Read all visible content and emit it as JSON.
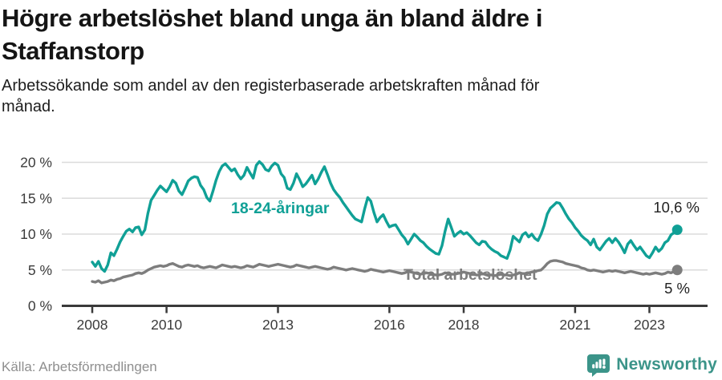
{
  "header": {
    "title_lines": [
      "Högre arbetslöshet bland unga än bland äldre i",
      "Staffanstorp"
    ],
    "subtitle_lines": [
      "Arbetssökande som andel av den registerbaserade arbetskraften månad för",
      "månad."
    ]
  },
  "chart_data": {
    "type": "line",
    "title": "Arbetssökande som andel av den registerbaserade arbetskraften månad för månad",
    "x_start": {
      "year": 2008,
      "month": 1
    },
    "x_end": {
      "year": 2023,
      "month": 10
    },
    "ylim": [
      0,
      20
    ],
    "grid": "horizontal",
    "legend_position": "inline-labels",
    "y_ticks": [
      {
        "label": "0 %",
        "value": 0
      },
      {
        "label": "5 %",
        "value": 5
      },
      {
        "label": "10 %",
        "value": 10
      },
      {
        "label": "15 %",
        "value": 15
      },
      {
        "label": "20 %",
        "value": 20
      }
    ],
    "x_ticks": [
      {
        "label": "2008",
        "year": 2008
      },
      {
        "label": "2010",
        "year": 2010
      },
      {
        "label": "2013",
        "year": 2013
      },
      {
        "label": "2016",
        "year": 2016
      },
      {
        "label": "2018",
        "year": 2018
      },
      {
        "label": "2021",
        "year": 2021
      },
      {
        "label": "2023",
        "year": 2023
      }
    ],
    "series": [
      {
        "name": "18-24-åringar",
        "color": "#10A096",
        "end_label": "10,6 %",
        "end_value": 10.6,
        "values": [
          6.1,
          5.5,
          6.2,
          5.2,
          4.8,
          5.7,
          7.4,
          7.0,
          7.9,
          8.9,
          9.7,
          10.4,
          10.7,
          10.3,
          10.9,
          11.0,
          9.9,
          10.6,
          12.9,
          14.7,
          15.4,
          16.1,
          16.7,
          16.3,
          15.9,
          16.6,
          17.5,
          17.1,
          16.0,
          15.5,
          16.4,
          17.4,
          17.8,
          18.0,
          17.9,
          16.8,
          16.2,
          15.1,
          14.6,
          16.0,
          17.5,
          18.7,
          19.5,
          19.8,
          19.3,
          18.8,
          19.1,
          18.3,
          17.7,
          18.2,
          19.3,
          18.5,
          17.8,
          19.6,
          20.1,
          19.7,
          19.0,
          18.8,
          19.5,
          19.9,
          19.6,
          18.4,
          17.9,
          16.4,
          16.2,
          17.1,
          18.4,
          17.6,
          16.6,
          17.0,
          17.6,
          18.2,
          17.0,
          17.7,
          18.6,
          19.4,
          18.3,
          17.1,
          16.2,
          15.6,
          15.1,
          14.4,
          13.8,
          13.2,
          12.6,
          12.1,
          11.9,
          11.7,
          13.5,
          15.1,
          14.6,
          13.0,
          11.7,
          12.3,
          12.7,
          11.8,
          11.0,
          11.2,
          11.3,
          10.6,
          9.9,
          9.4,
          8.6,
          9.3,
          10.0,
          9.6,
          9.1,
          8.8,
          8.3,
          7.9,
          7.6,
          7.3,
          7.2,
          8.4,
          10.4,
          12.1,
          10.9,
          9.7,
          10.1,
          10.4,
          10.0,
          10.2,
          9.8,
          9.3,
          8.8,
          8.5,
          9.0,
          8.9,
          8.3,
          7.9,
          7.6,
          7.4,
          7.0,
          6.8,
          6.6,
          7.8,
          9.7,
          9.3,
          8.9,
          9.9,
          10.2,
          9.6,
          10.0,
          9.4,
          9.1,
          10.0,
          11.2,
          12.8,
          13.6,
          14.0,
          14.4,
          14.3,
          13.6,
          12.8,
          12.1,
          11.6,
          10.9,
          10.4,
          9.8,
          9.4,
          9.1,
          8.5,
          9.3,
          8.2,
          7.8,
          8.4,
          9.0,
          9.4,
          8.8,
          9.4,
          8.9,
          8.2,
          7.4,
          8.6,
          9.1,
          8.4,
          7.8,
          8.2,
          7.6,
          7.0,
          6.7,
          7.4,
          8.2,
          7.6,
          8.0,
          8.8,
          9.1,
          9.9,
          10.2,
          10.6
        ]
      },
      {
        "name": "Total arbetslöshet",
        "color": "#7D7D7D",
        "end_label": "5 %",
        "end_value": 5.0,
        "values": [
          3.4,
          3.3,
          3.5,
          3.2,
          3.3,
          3.4,
          3.6,
          3.5,
          3.7,
          3.8,
          4.0,
          4.1,
          4.2,
          4.3,
          4.5,
          4.6,
          4.5,
          4.7,
          5.0,
          5.2,
          5.4,
          5.5,
          5.6,
          5.5,
          5.6,
          5.8,
          5.9,
          5.7,
          5.5,
          5.4,
          5.6,
          5.7,
          5.6,
          5.5,
          5.6,
          5.4,
          5.3,
          5.4,
          5.5,
          5.4,
          5.3,
          5.5,
          5.7,
          5.6,
          5.5,
          5.4,
          5.5,
          5.4,
          5.3,
          5.4,
          5.6,
          5.5,
          5.4,
          5.6,
          5.8,
          5.7,
          5.6,
          5.5,
          5.6,
          5.7,
          5.8,
          5.7,
          5.6,
          5.5,
          5.4,
          5.5,
          5.7,
          5.6,
          5.5,
          5.4,
          5.3,
          5.4,
          5.5,
          5.4,
          5.3,
          5.2,
          5.1,
          5.2,
          5.4,
          5.3,
          5.2,
          5.1,
          5.0,
          5.1,
          5.2,
          5.1,
          5.0,
          4.9,
          4.8,
          4.9,
          5.1,
          5.0,
          4.9,
          4.8,
          4.7,
          4.8,
          4.9,
          4.8,
          4.7,
          4.6,
          4.5,
          4.6,
          4.8,
          4.7,
          4.6,
          4.5,
          4.4,
          4.5,
          4.6,
          4.5,
          4.4,
          4.3,
          4.3,
          4.4,
          4.6,
          4.5,
          4.4,
          4.4,
          4.5,
          4.6,
          4.7,
          4.6,
          4.5,
          4.4,
          4.3,
          4.3,
          4.5,
          4.4,
          4.3,
          4.3,
          4.2,
          4.3,
          4.4,
          4.3,
          4.3,
          4.2,
          4.3,
          4.4,
          4.6,
          4.5,
          4.5,
          4.6,
          4.7,
          4.8,
          4.9,
          5.0,
          5.4,
          5.9,
          6.2,
          6.3,
          6.3,
          6.2,
          6.1,
          5.9,
          5.8,
          5.7,
          5.6,
          5.5,
          5.3,
          5.2,
          5.0,
          4.9,
          5.0,
          4.9,
          4.8,
          4.7,
          4.8,
          4.9,
          4.8,
          4.9,
          4.8,
          4.7,
          4.6,
          4.7,
          4.8,
          4.7,
          4.6,
          4.5,
          4.4,
          4.5,
          4.4,
          4.5,
          4.6,
          4.5,
          4.4,
          4.5,
          4.7,
          4.6,
          4.8,
          5.0
        ]
      }
    ]
  },
  "footer": {
    "source": "Källa: Arbetsförmedlingen",
    "brand": "Newsworthy"
  },
  "colors": {
    "accent_teal": "#10A096",
    "series_gray": "#7D7D7D",
    "grid": "#DBDBDB",
    "axis": "#3A3A3A",
    "brand_teal": "#3B9489"
  }
}
